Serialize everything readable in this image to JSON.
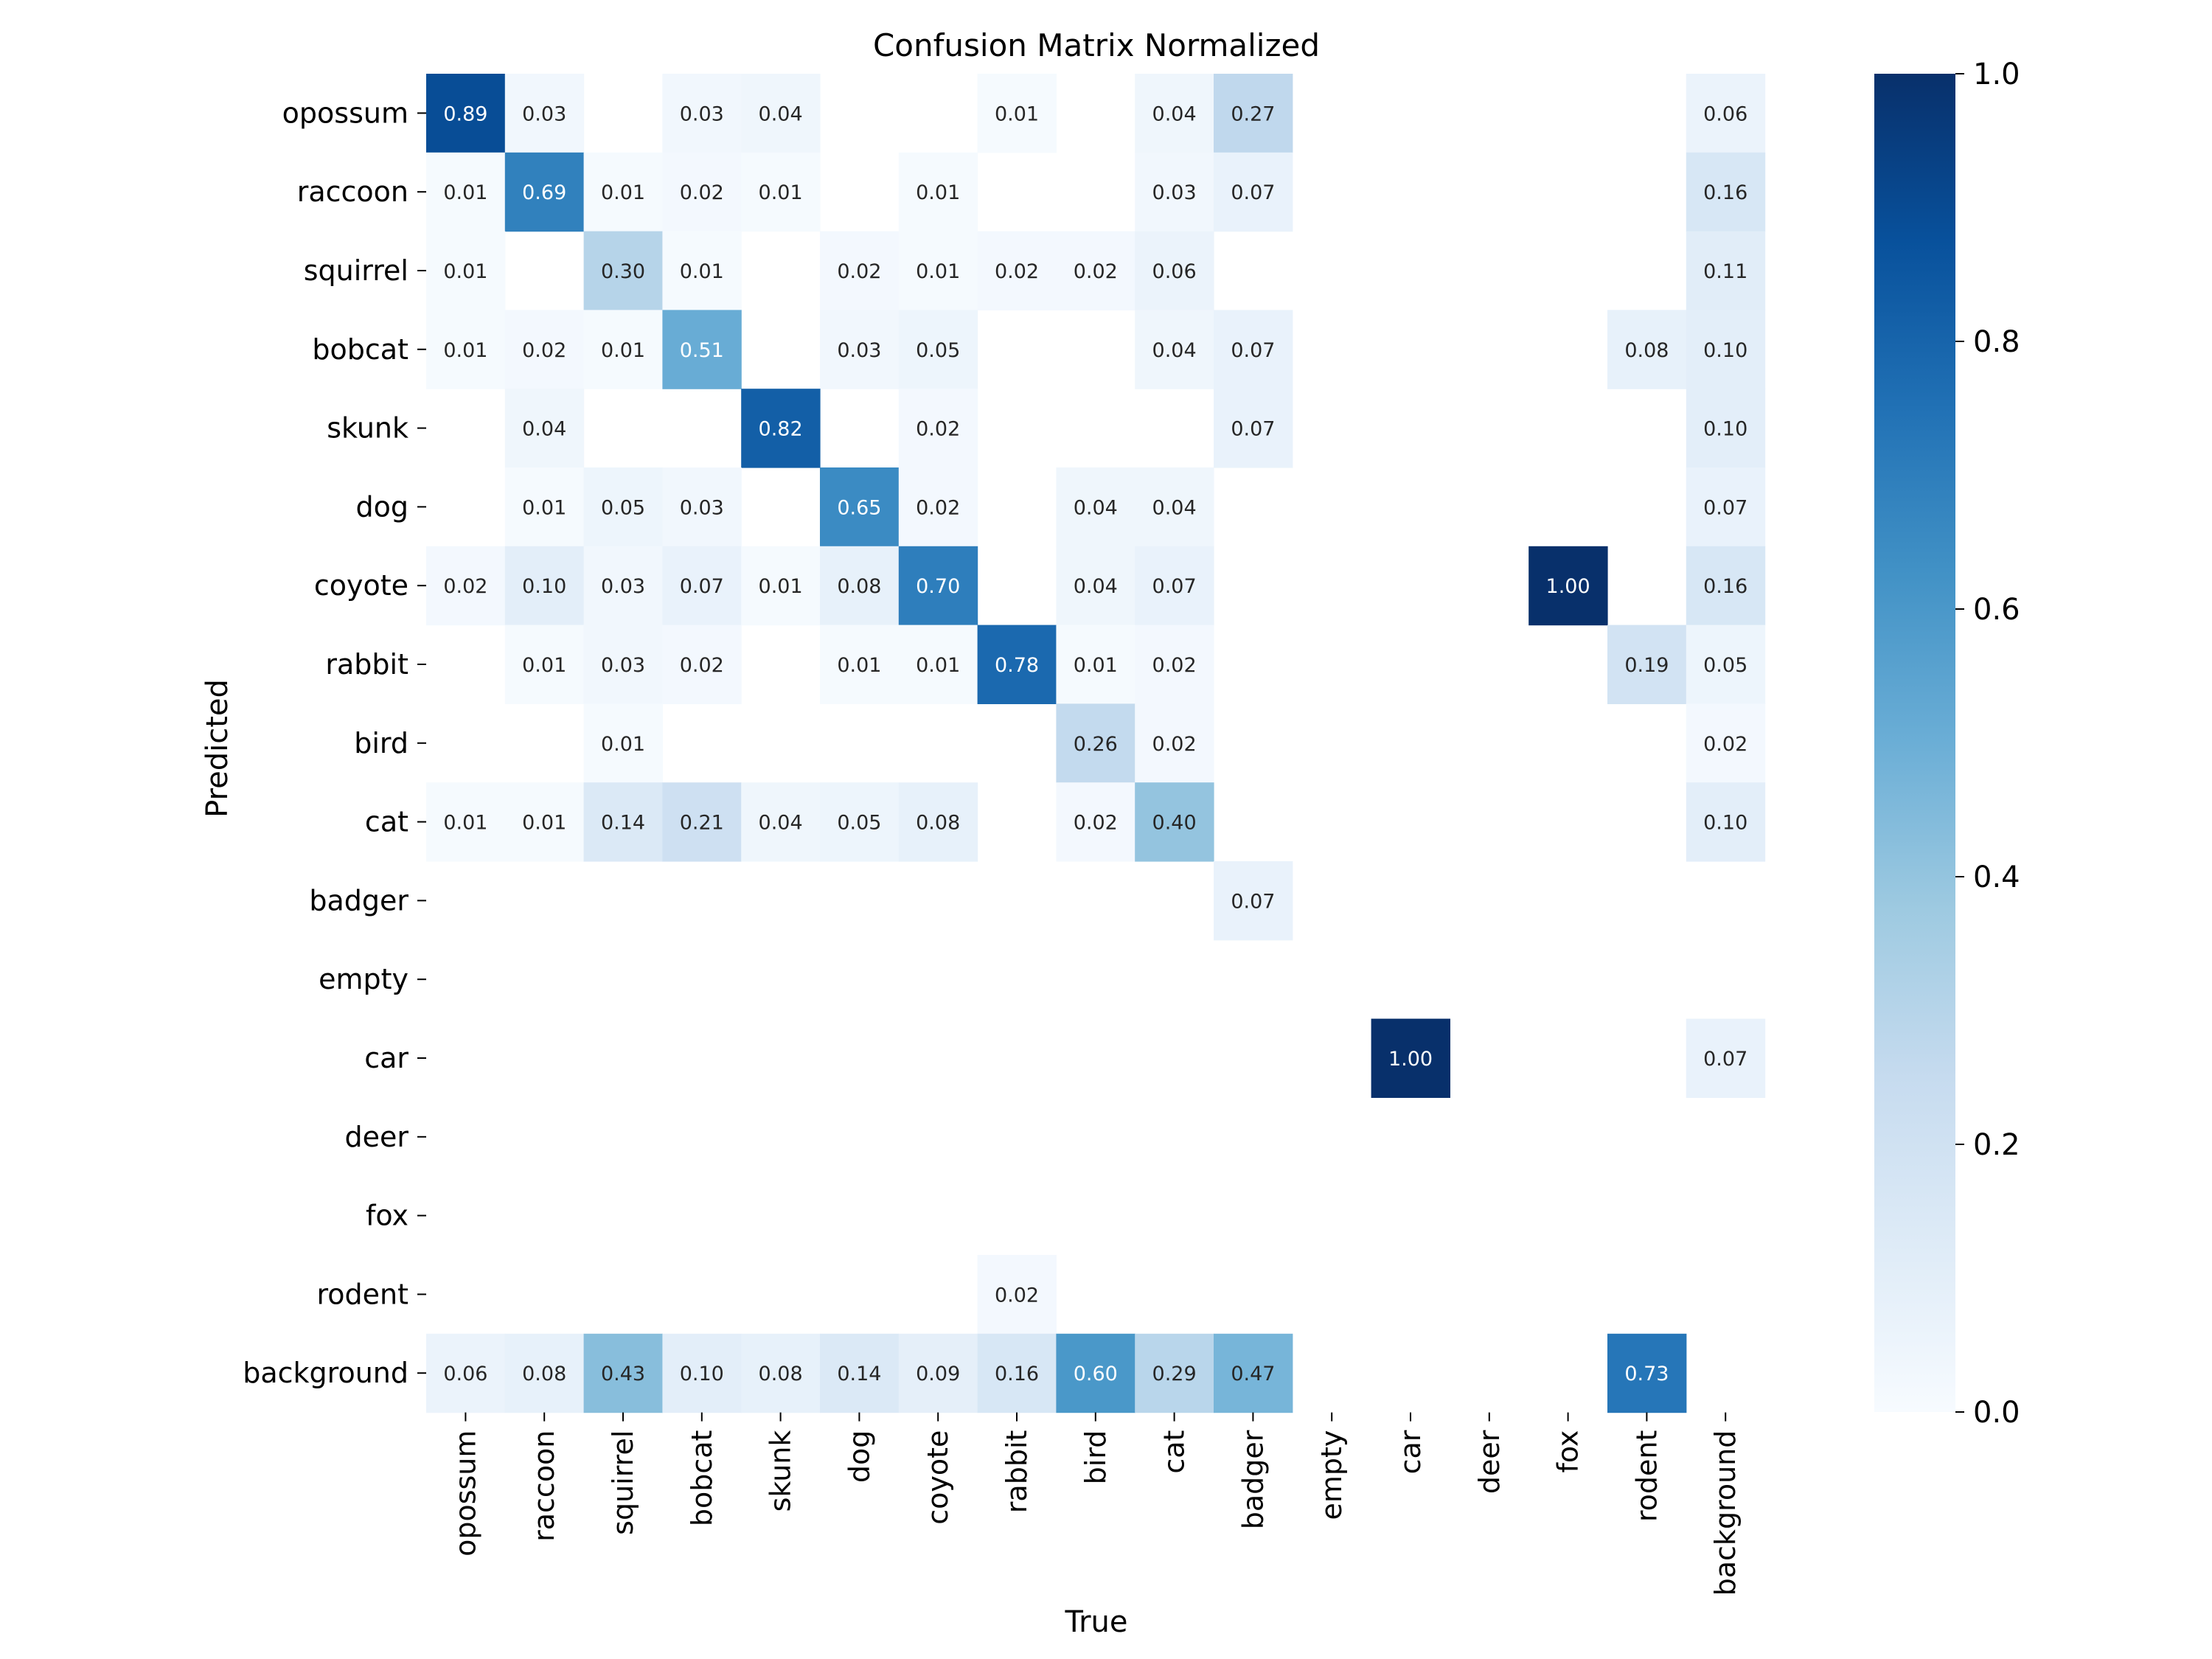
{
  "chart_data": {
    "type": "heatmap",
    "title": "Confusion Matrix Normalized",
    "xlabel": "True",
    "ylabel": "Predicted",
    "categories": [
      "opossum",
      "raccoon",
      "squirrel",
      "bobcat",
      "skunk",
      "dog",
      "coyote",
      "rabbit",
      "bird",
      "cat",
      "badger",
      "empty",
      "car",
      "deer",
      "fox",
      "rodent",
      "background"
    ],
    "values": [
      [
        0.89,
        0.03,
        null,
        0.03,
        0.04,
        null,
        null,
        0.01,
        null,
        0.04,
        0.27,
        null,
        null,
        null,
        null,
        null,
        0.06
      ],
      [
        0.01,
        0.69,
        0.01,
        0.02,
        0.01,
        null,
        0.01,
        null,
        null,
        0.03,
        0.07,
        null,
        null,
        null,
        null,
        null,
        0.16
      ],
      [
        0.01,
        null,
        0.3,
        0.01,
        null,
        0.02,
        0.01,
        0.02,
        0.02,
        0.06,
        null,
        null,
        null,
        null,
        null,
        null,
        0.11
      ],
      [
        0.01,
        0.02,
        0.01,
        0.51,
        null,
        0.03,
        0.05,
        null,
        null,
        0.04,
        0.07,
        null,
        null,
        null,
        null,
        0.08,
        0.1
      ],
      [
        null,
        0.04,
        null,
        null,
        0.82,
        null,
        0.02,
        null,
        null,
        null,
        0.07,
        null,
        null,
        null,
        null,
        null,
        0.1
      ],
      [
        null,
        0.01,
        0.05,
        0.03,
        null,
        0.65,
        0.02,
        null,
        0.04,
        0.04,
        null,
        null,
        null,
        null,
        null,
        null,
        0.07
      ],
      [
        0.02,
        0.1,
        0.03,
        0.07,
        0.01,
        0.08,
        0.7,
        null,
        0.04,
        0.07,
        null,
        null,
        null,
        null,
        1.0,
        null,
        0.16
      ],
      [
        null,
        0.01,
        0.03,
        0.02,
        null,
        0.01,
        0.01,
        0.78,
        0.01,
        0.02,
        null,
        null,
        null,
        null,
        null,
        0.19,
        0.05
      ],
      [
        null,
        null,
        0.01,
        null,
        null,
        null,
        null,
        null,
        0.26,
        0.02,
        null,
        null,
        null,
        null,
        null,
        null,
        0.02
      ],
      [
        0.01,
        0.01,
        0.14,
        0.21,
        0.04,
        0.05,
        0.08,
        null,
        0.02,
        0.4,
        null,
        null,
        null,
        null,
        null,
        null,
        0.1
      ],
      [
        null,
        null,
        null,
        null,
        null,
        null,
        null,
        null,
        null,
        null,
        0.07,
        null,
        null,
        null,
        null,
        null,
        null
      ],
      [
        null,
        null,
        null,
        null,
        null,
        null,
        null,
        null,
        null,
        null,
        null,
        null,
        null,
        null,
        null,
        null,
        null
      ],
      [
        null,
        null,
        null,
        null,
        null,
        null,
        null,
        null,
        null,
        null,
        null,
        null,
        1.0,
        null,
        null,
        null,
        0.07
      ],
      [
        null,
        null,
        null,
        null,
        null,
        null,
        null,
        null,
        null,
        null,
        null,
        null,
        null,
        null,
        null,
        null,
        null
      ],
      [
        null,
        null,
        null,
        null,
        null,
        null,
        null,
        null,
        null,
        null,
        null,
        null,
        null,
        null,
        null,
        null,
        null
      ],
      [
        null,
        null,
        null,
        null,
        null,
        null,
        null,
        0.02,
        null,
        null,
        null,
        null,
        null,
        null,
        null,
        null,
        null
      ],
      [
        0.06,
        0.08,
        0.43,
        0.1,
        0.08,
        0.14,
        0.09,
        0.16,
        0.6,
        0.29,
        0.47,
        null,
        null,
        null,
        null,
        0.73,
        null
      ]
    ],
    "value_format": "0.00",
    "colormap": "Blues",
    "vmin": 0.0,
    "vmax": 1.0,
    "colorbar_ticks": [
      "0.0",
      "0.2",
      "0.4",
      "0.6",
      "0.8",
      "1.0"
    ],
    "grid": false
  }
}
